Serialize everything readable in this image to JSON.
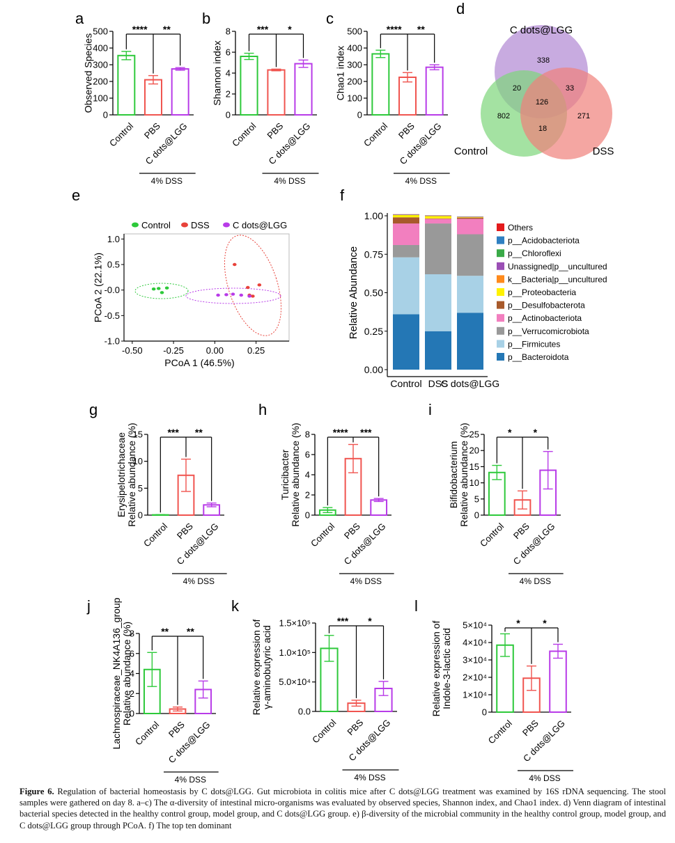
{
  "colors": {
    "control": "#2DC93A",
    "pbs": "#F0544F",
    "cdots": "#B83BE8",
    "dss_red": "#E8423A"
  },
  "group_labels": {
    "control": "Control",
    "pbs": "PBS",
    "cdots": "C dots@LGG",
    "treatment": "4% DSS"
  },
  "panels": [
    {
      "id": "a",
      "title_letter": "a",
      "ylabel": [
        "Observed Species"
      ],
      "yticks": [
        "0",
        "100",
        "200",
        "300",
        "400",
        "500"
      ],
      "ylim": [
        0,
        500
      ],
      "values": [
        355,
        210,
        275
      ],
      "errors": [
        25,
        25,
        8
      ],
      "sig": [
        "****",
        "**"
      ]
    },
    {
      "id": "b",
      "title_letter": "b",
      "ylabel": [
        "Shannon index"
      ],
      "yticks": [
        "0",
        "2",
        "4",
        "6",
        "8"
      ],
      "ylim": [
        0,
        8
      ],
      "values": [
        5.6,
        4.3,
        4.9
      ],
      "errors": [
        0.3,
        0.08,
        0.35
      ],
      "sig": [
        "***",
        "*"
      ]
    },
    {
      "id": "c",
      "title_letter": "c",
      "ylabel": [
        "Chao1 index"
      ],
      "yticks": [
        "0",
        "100",
        "200",
        "300",
        "400",
        "500"
      ],
      "ylim": [
        0,
        500
      ],
      "values": [
        365,
        225,
        285
      ],
      "errors": [
        22,
        28,
        15
      ],
      "sig": [
        "****",
        "**"
      ]
    },
    {
      "id": "g",
      "title_letter": "g",
      "ylabel": [
        "Erysipelotrichaceae",
        "Relative abundance (%)"
      ],
      "yticks": [
        "0",
        "5",
        "10",
        "15"
      ],
      "ylim": [
        0,
        15
      ],
      "values": [
        0.05,
        7.4,
        1.9
      ],
      "errors": [
        0.05,
        3.0,
        0.35
      ],
      "sig": [
        "***",
        "**"
      ]
    },
    {
      "id": "h",
      "title_letter": "h",
      "ylabel": [
        "Turicibacter",
        "Relative abundance (%)"
      ],
      "yticks": [
        "0",
        "2",
        "4",
        "6",
        "8"
      ],
      "ylim": [
        0,
        8
      ],
      "values": [
        0.5,
        5.6,
        1.5
      ],
      "errors": [
        0.25,
        1.4,
        0.15
      ],
      "sig": [
        "****",
        "***"
      ]
    },
    {
      "id": "i",
      "title_letter": "i",
      "ylabel": [
        "Bifidobacterium",
        "Relative abundance (%)"
      ],
      "yticks": [
        "0",
        "5",
        "10",
        "15",
        "20",
        "25"
      ],
      "ylim": [
        0,
        25
      ],
      "values": [
        13.2,
        4.7,
        13.9
      ],
      "errors": [
        2.2,
        2.8,
        5.8
      ],
      "sig": [
        "*",
        "*"
      ]
    },
    {
      "id": "j",
      "title_letter": "j",
      "ylabel": [
        "Lachnospiraceae_NK4A136_group",
        "Relative abundance (%)"
      ],
      "yticks": [
        "0",
        "2",
        "4",
        "6",
        "8"
      ],
      "ylim": [
        0,
        8
      ],
      "values": [
        4.4,
        0.45,
        2.4
      ],
      "errors": [
        1.7,
        0.2,
        0.85
      ],
      "sig": [
        "**",
        "**"
      ]
    },
    {
      "id": "k",
      "title_letter": "k",
      "ylabel": [
        "Relative expression of",
        "γ-aminobutyric acid"
      ],
      "yticks": [
        "0.0",
        "5.0×10⁴",
        "1.0×10⁵",
        "1.5×10⁵"
      ],
      "ylim": [
        0,
        150000
      ],
      "values": [
        107000,
        14000,
        39000
      ],
      "errors": [
        22000,
        5000,
        12000
      ],
      "sig": [
        "***",
        "*"
      ]
    },
    {
      "id": "l",
      "title_letter": "l",
      "ylabel": [
        "Relative expression of",
        "Indole-3-lactic acid"
      ],
      "yticks": [
        "0",
        "1×10⁴",
        "2×10⁴",
        "3×10⁴",
        "4×10⁴",
        "5×10⁴"
      ],
      "ylim": [
        0,
        50000
      ],
      "values": [
        38500,
        19500,
        35000
      ],
      "errors": [
        6500,
        7000,
        4000
      ],
      "sig": [
        "*",
        "*"
      ]
    }
  ],
  "venn": {
    "title_letter": "d",
    "labels": {
      "cdots": "C dots@LGG",
      "control": "Control",
      "dss": "DSS"
    },
    "counts": {
      "cdots_only": "338",
      "control_only": "802",
      "dss_only": "271",
      "control_cdots": "20",
      "cdots_dss": "33",
      "control_dss": "18",
      "all": "126"
    },
    "colors": {
      "cdots": "#B58FD6",
      "control": "#7ED67B",
      "dss": "#F0807A"
    }
  },
  "pcoa": {
    "title_letter": "e",
    "legend": [
      "Control",
      "DSS",
      "C dots@LGG"
    ],
    "xlabel": "PCoA 1 (46.5%)",
    "ylabel": "PCoA 2 (22.1%)",
    "xticks": [
      "-0.50",
      "-0.25",
      "0.00",
      "0.25"
    ],
    "yticks": [
      "1.0",
      "0.5",
      "-0.0",
      "-0.5",
      "-1.0"
    ],
    "xlim": [
      -0.55,
      0.45
    ],
    "ylim": [
      -1.0,
      1.1
    ],
    "points": {
      "control": [
        [
          -0.37,
          0.02
        ],
        [
          -0.34,
          0.03
        ],
        [
          -0.32,
          -0.05
        ],
        [
          -0.29,
          0.04
        ]
      ],
      "dss": [
        [
          0.12,
          0.5
        ],
        [
          0.2,
          0.05
        ],
        [
          0.21,
          -0.1
        ],
        [
          0.23,
          -0.12
        ],
        [
          0.27,
          0.1
        ]
      ],
      "cdots": [
        [
          0.02,
          -0.1
        ],
        [
          0.07,
          -0.09
        ],
        [
          0.11,
          -0.08
        ],
        [
          0.16,
          -0.1
        ],
        [
          0.21,
          -0.12
        ]
      ]
    }
  },
  "chart_data": {
    "type": "bar",
    "stacked": true,
    "title_letter": "f",
    "ylabel": "Relative Abundance",
    "ylim": [
      0,
      1
    ],
    "yticks": [
      "0.00",
      "0.25",
      "0.50",
      "0.75",
      "1.00"
    ],
    "categories": [
      "Control",
      "DSS",
      "C dots@LGG"
    ],
    "series": [
      {
        "name": "p__Bacteroidota",
        "color": "#2477B5",
        "values": [
          0.36,
          0.25,
          0.37
        ]
      },
      {
        "name": "p__Firmicutes",
        "color": "#A8D1E6",
        "values": [
          0.37,
          0.37,
          0.24
        ]
      },
      {
        "name": "p__Verrucomicrobiota",
        "color": "#999999",
        "values": [
          0.08,
          0.33,
          0.27
        ]
      },
      {
        "name": "p__Actinobacteriota",
        "color": "#F27FBF",
        "values": [
          0.14,
          0.03,
          0.1
        ]
      },
      {
        "name": "p__Desulfobacterota",
        "color": "#A85A2B",
        "values": [
          0.04,
          0.003,
          0.007
        ]
      },
      {
        "name": "p__Proteobacteria",
        "color": "#FFF200",
        "values": [
          0.015,
          0.015,
          0.003
        ]
      },
      {
        "name": "k__Bacteria|p__uncultured",
        "color": "#FF8A1C",
        "values": [
          0.001,
          0.001,
          0.001
        ]
      },
      {
        "name": "Unassigned|p__uncultured",
        "color": "#9B4FB5",
        "values": [
          0.001,
          0.001,
          0.001
        ]
      },
      {
        "name": "p__Chloroflexi",
        "color": "#3AAA48",
        "values": [
          0.001,
          0.001,
          0.001
        ]
      },
      {
        "name": "p__Acidobacteriota",
        "color": "#2F80C2",
        "values": [
          0.001,
          0.001,
          0.001
        ]
      },
      {
        "name": "Others",
        "color": "#E31A1C",
        "values": [
          0.001,
          0.001,
          0.001
        ]
      }
    ],
    "legend_order": [
      "Others",
      "p__Acidobacteriota",
      "p__Chloroflexi",
      "Unassigned|p__uncultured",
      "k__Bacteria|p__uncultured",
      "p__Proteobacteria",
      "p__Desulfobacterota",
      "p__Actinobacteriota",
      "p__Verrucomicrobiota",
      "p__Firmicutes",
      "p__Bacteroidota"
    ]
  },
  "caption": {
    "label": "Figure 6.",
    "text": "Regulation of bacterial homeostasis by C dots@LGG. Gut microbiota in colitis mice after C dots@LGG treatment was examined by 16S rDNA sequencing. The stool samples were gathered on day 8. a–c) The α-diversity of intestinal micro-organisms was evaluated by observed species, Shannon index, and Chao1 index. d) Venn diagram of intestinal bacterial species detected in the healthy control group, model group, and C dots@LGG group. e) β-diversity of the microbial community in the healthy control group, model group, and C dots@LGG group through PCoA. f) The top ten dominant"
  }
}
